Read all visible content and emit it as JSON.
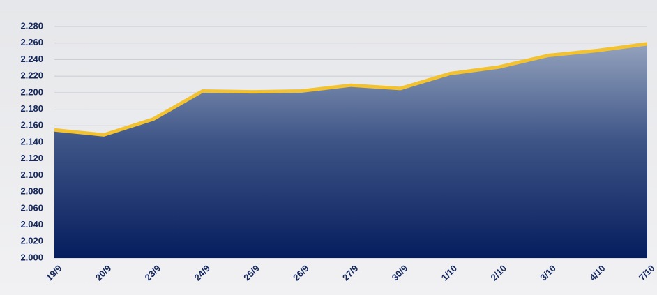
{
  "chart_data": {
    "type": "area",
    "categories": [
      "19/9",
      "20/9",
      "23/9",
      "24/9",
      "25/9",
      "26/9",
      "27/9",
      "30/9",
      "1/10",
      "2/10",
      "3/10",
      "4/10",
      "7/10"
    ],
    "values": [
      2155,
      2149,
      2168,
      2202,
      2201,
      2202,
      2209,
      2205,
      2223,
      2231,
      2245,
      2251,
      2259
    ],
    "color": "#f2c230",
    "ylim": [
      2000,
      2280
    ],
    "yticks": [
      {
        "value": 2000,
        "label": "2.000"
      },
      {
        "value": 2020,
        "label": "2.020"
      },
      {
        "value": 2040,
        "label": "2.040"
      },
      {
        "value": 2060,
        "label": "2.060"
      },
      {
        "value": 2080,
        "label": "2.080"
      },
      {
        "value": 2100,
        "label": "2.100"
      },
      {
        "value": 2120,
        "label": "2.120"
      },
      {
        "value": 2140,
        "label": "2.140"
      },
      {
        "value": 2160,
        "label": "2.160"
      },
      {
        "value": 2180,
        "label": "2.180"
      },
      {
        "value": 2200,
        "label": "2.200"
      },
      {
        "value": 2220,
        "label": "2.220"
      },
      {
        "value": 2240,
        "label": "2.240"
      },
      {
        "value": 2260,
        "label": "2.260"
      },
      {
        "value": 2280,
        "label": "2.280"
      }
    ],
    "grid": true
  }
}
